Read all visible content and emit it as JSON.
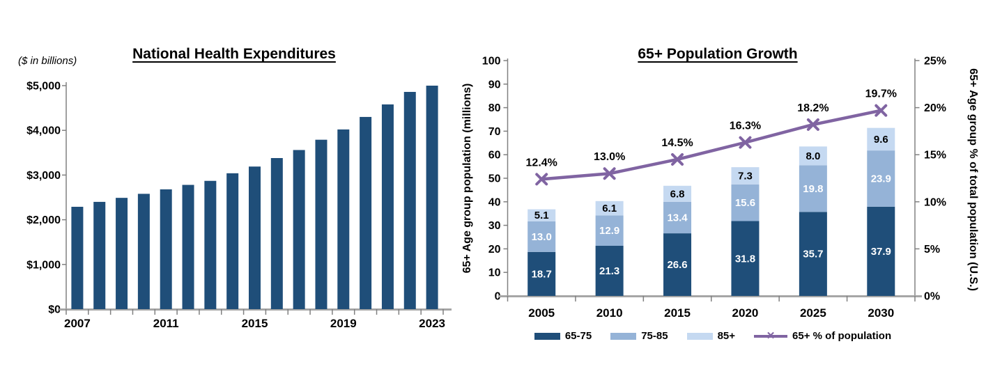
{
  "chart_data": [
    {
      "id": "nhe",
      "type": "bar",
      "title": "National Health Expenditures",
      "units_label": "($ in billions)",
      "bar_color": "#1F4E79",
      "categories": [
        "2007",
        "2008",
        "2009",
        "2010",
        "2011",
        "2012",
        "2013",
        "2014",
        "2015",
        "2016",
        "2017",
        "2018",
        "2019",
        "2020",
        "2021",
        "2022",
        "2023"
      ],
      "values": [
        2290,
        2400,
        2490,
        2580,
        2680,
        2780,
        2870,
        3040,
        3190,
        3380,
        3560,
        3790,
        4020,
        4300,
        4580,
        4860,
        5000
      ],
      "ylim": [
        0,
        5000
      ],
      "y_tick_labels": [
        "$0",
        "$1,000",
        "$2,000",
        "$3,000",
        "$4,000",
        "$5,000"
      ],
      "x_tick_shown_indices": [
        0,
        4,
        8,
        12,
        16
      ],
      "x_tick_shown_labels": [
        "2007",
        "2011",
        "2015",
        "2019",
        "2023"
      ],
      "grid": false,
      "legend_position": "none"
    },
    {
      "id": "pop65",
      "type": "stacked-bar-line",
      "title": "65+ Population Growth",
      "left_axis_label": "65+ Age group population (millions)",
      "right_axis_label": "65+ Age group % of total population (U.S.)",
      "categories": [
        "2005",
        "2010",
        "2015",
        "2020",
        "2025",
        "2030"
      ],
      "series": [
        {
          "name": "65-75",
          "color": "#1F4E79",
          "label_color": "#FFFFFF",
          "values": [
            18.7,
            21.3,
            26.6,
            31.8,
            35.7,
            37.9
          ]
        },
        {
          "name": "75-85",
          "color": "#95B3D7",
          "label_color": "#FFFFFF",
          "values": [
            13.0,
            12.9,
            13.4,
            15.6,
            19.8,
            23.9
          ]
        },
        {
          "name": "85+",
          "color": "#C5D9F1",
          "label_color": "#000000",
          "values": [
            5.1,
            6.1,
            6.8,
            7.3,
            8.0,
            9.6
          ]
        }
      ],
      "line_series": {
        "name": "65+ % of population",
        "color": "#8064A2",
        "values": [
          12.4,
          13.0,
          14.5,
          16.3,
          18.2,
          19.7
        ],
        "labels": [
          "12.4%",
          "13.0%",
          "14.5%",
          "16.3%",
          "18.2%",
          "19.7%"
        ]
      },
      "left_ylim": [
        0,
        100
      ],
      "left_tick_labels": [
        "0",
        "10",
        "20",
        "30",
        "40",
        "50",
        "60",
        "70",
        "80",
        "90",
        "100"
      ],
      "right_ylim": [
        0,
        25
      ],
      "right_tick_labels": [
        "0%",
        "5%",
        "10%",
        "15%",
        "20%",
        "25%"
      ],
      "grid": false,
      "legend_position": "bottom",
      "legend": [
        {
          "label": "65-75",
          "color": "#1F4E79",
          "marker": "swatch"
        },
        {
          "label": "75-85",
          "color": "#95B3D7",
          "marker": "swatch"
        },
        {
          "label": "85+",
          "color": "#C5D9F1",
          "marker": "swatch"
        },
        {
          "label": "65+ % of population",
          "color": "#8064A2",
          "marker": "line-x"
        }
      ]
    }
  ]
}
